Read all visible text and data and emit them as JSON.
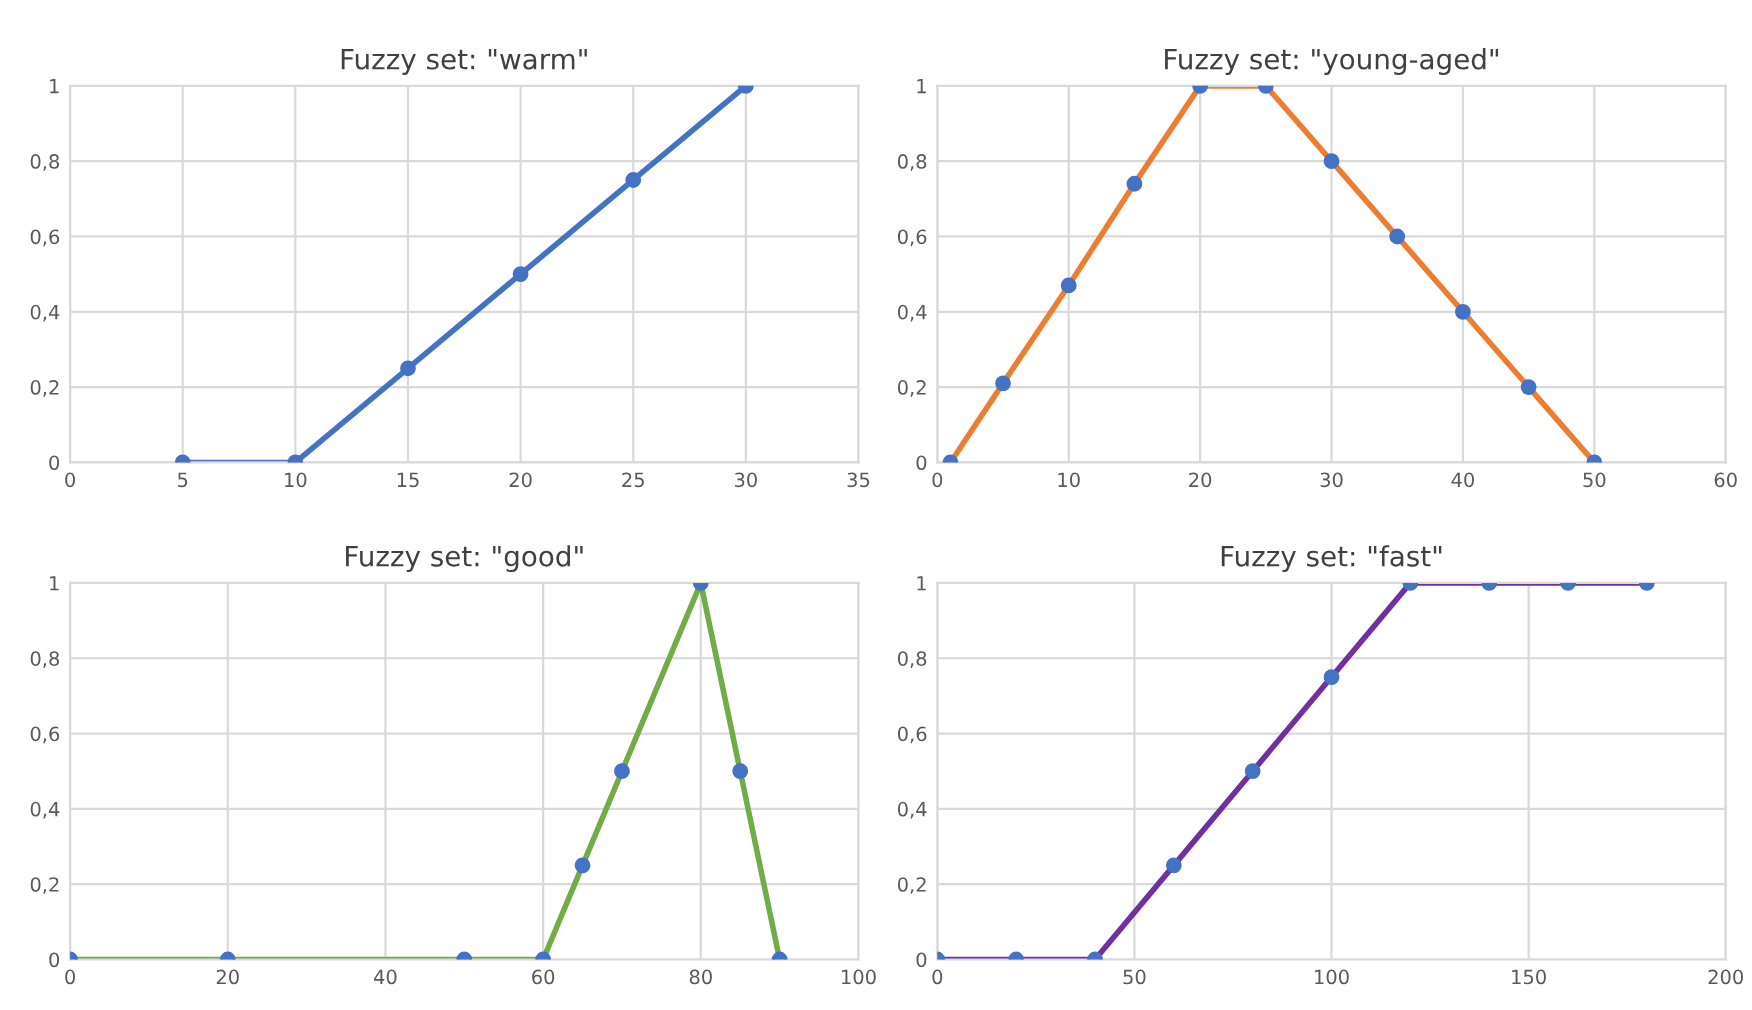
{
  "chart_data": [
    {
      "type": "line",
      "title": "Fuzzy set: \"warm\"",
      "xlim": [
        0,
        35
      ],
      "xticks": [
        0,
        5,
        10,
        15,
        20,
        25,
        30,
        35
      ],
      "ylim": [
        0,
        1
      ],
      "yticks": [
        0,
        {
          "value": 0.2,
          "label": "0,2"
        },
        {
          "value": 0.4,
          "label": "0,4"
        },
        {
          "value": 0.6,
          "label": "0,6"
        },
        {
          "value": 0.8,
          "label": "0,8"
        },
        1
      ],
      "grid": true,
      "x": [
        5,
        10,
        15,
        20,
        25,
        30
      ],
      "series": [
        {
          "color": "#4472c4",
          "values": [
            0,
            0,
            0.25,
            0.5,
            0.75,
            1
          ]
        },
        {
          "type": "scatter",
          "color": "#4472c4",
          "marker": "circle",
          "values": [
            0,
            0,
            0.25,
            0.5,
            0.75,
            1
          ]
        }
      ]
    },
    {
      "type": "line",
      "title": "Fuzzy set: \"young-aged\"",
      "xlim": [
        0,
        60
      ],
      "xticks": [
        0,
        10,
        20,
        30,
        40,
        50,
        60
      ],
      "ylim": [
        0,
        1
      ],
      "yticks": [
        0,
        {
          "value": 0.2,
          "label": "0,2"
        },
        {
          "value": 0.4,
          "label": "0,4"
        },
        {
          "value": 0.6,
          "label": "0,6"
        },
        {
          "value": 0.8,
          "label": "0,8"
        },
        1
      ],
      "grid": true,
      "x": [
        1,
        5,
        10,
        15,
        20,
        25,
        30,
        35,
        40,
        45,
        50
      ],
      "series": [
        {
          "color": "#ed7d31",
          "values": [
            0,
            0.21,
            0.47,
            0.74,
            1,
            1,
            0.8,
            0.6,
            0.4,
            0.2,
            0
          ]
        },
        {
          "type": "scatter",
          "color": "#4472c4",
          "marker": "circle",
          "values": [
            0,
            0.21,
            0.47,
            0.74,
            1,
            1,
            0.8,
            0.6,
            0.4,
            0.2,
            0
          ]
        }
      ]
    },
    {
      "type": "line",
      "title": "Fuzzy set: \"good\"",
      "xlim": [
        0,
        100
      ],
      "xticks": [
        0,
        20,
        40,
        60,
        80,
        100
      ],
      "ylim": [
        0,
        1
      ],
      "yticks": [
        0,
        {
          "value": 0.2,
          "label": "0,2"
        },
        {
          "value": 0.4,
          "label": "0,4"
        },
        {
          "value": 0.6,
          "label": "0,6"
        },
        {
          "value": 0.8,
          "label": "0,8"
        },
        1
      ],
      "grid": true,
      "x": [
        0,
        20,
        50,
        60,
        65,
        70,
        80,
        85,
        90
      ],
      "series": [
        {
          "color": "#70ad47",
          "values": [
            0,
            0,
            0,
            0,
            0.25,
            0.5,
            1,
            0.5,
            0
          ]
        },
        {
          "type": "scatter",
          "color": "#4472c4",
          "marker": "circle",
          "values": [
            0,
            0,
            0,
            0,
            0.25,
            0.5,
            1,
            0.5,
            0
          ]
        }
      ]
    },
    {
      "type": "line",
      "title": "Fuzzy set: \"fast\"",
      "xlim": [
        0,
        200
      ],
      "xticks": [
        0,
        50,
        100,
        150,
        200
      ],
      "ylim": [
        0,
        1
      ],
      "yticks": [
        0,
        {
          "value": 0.2,
          "label": "0,2"
        },
        {
          "value": 0.4,
          "label": "0,4"
        },
        {
          "value": 0.6,
          "label": "0,6"
        },
        {
          "value": 0.8,
          "label": "0,8"
        },
        1
      ],
      "grid": true,
      "x": [
        0,
        20,
        40,
        60,
        80,
        100,
        120,
        140,
        160,
        180
      ],
      "series": [
        {
          "color": "#7030a0",
          "values": [
            0,
            0,
            0,
            0.25,
            0.5,
            0.75,
            1,
            1,
            1,
            1
          ]
        },
        {
          "type": "scatter",
          "color": "#4472c4",
          "marker": "circle",
          "values": [
            0,
            0,
            0,
            0.25,
            0.5,
            0.75,
            1,
            1,
            1,
            1
          ]
        }
      ]
    }
  ]
}
